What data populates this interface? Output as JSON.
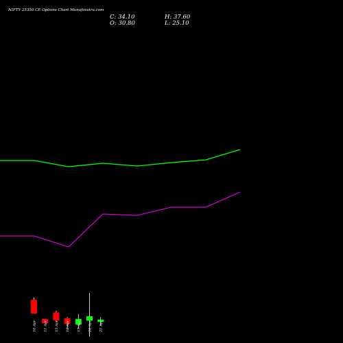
{
  "header": {
    "title": "NIFTY 25350 CE Options Chart Munafasutra.com",
    "close_label": "C: 34.10",
    "high_label": "H: 37.60",
    "open_label": "O: 30.80",
    "low_label": "L: 25.10"
  },
  "colors": {
    "background": "#000000",
    "upper_band": "#00ff00",
    "lower_band": "#cc00cc",
    "bull_candle": "#00ff00",
    "bear_candle": "#ff0000",
    "wick": "#ffffff",
    "text": "#ffffff"
  },
  "chart_data": {
    "type": "candlestick",
    "title": "NIFTY 25350 CE Options Chart Munafasutra.com",
    "categories": [
      "10 Apr",
      "11 Apr",
      "15 Apr",
      "16 Apr",
      "17 Apr",
      "20 Apr",
      "21 Apr"
    ],
    "candles": [
      {
        "date": "10 Apr",
        "open": 63,
        "high": 66,
        "low": 45,
        "close": 43,
        "direction": "down"
      },
      {
        "date": "11 Apr",
        "open": 35,
        "high": 35,
        "low": 29,
        "close": 29,
        "direction": "down"
      },
      {
        "date": "15 Apr",
        "open": 44.5,
        "high": 47,
        "low": 31,
        "close": 33,
        "direction": "down"
      },
      {
        "date": "16 Apr",
        "open": 36,
        "high": 38,
        "low": 21,
        "close": 28,
        "direction": "down"
      },
      {
        "date": "17 Apr",
        "open": 27,
        "high": 42,
        "low": 21,
        "close": 35,
        "direction": "up"
      },
      {
        "date": "20 Apr",
        "open": 32.5,
        "high": 73,
        "low": 9,
        "close": 39,
        "direction": "up"
      },
      {
        "date": "21 Apr",
        "open": 30.8,
        "high": 37.6,
        "low": 25.1,
        "close": 34.1,
        "direction": "up"
      }
    ],
    "overlay_series": [
      {
        "role": "upper-band",
        "color": "#00ff00",
        "x": [
          "10 Apr",
          "11 Apr",
          "15 Apr",
          "16 Apr",
          "17 Apr",
          "20 Apr",
          "21 Apr"
        ],
        "values": [
          266,
          257,
          262,
          258,
          263,
          267,
          282
        ]
      },
      {
        "role": "lower-band",
        "color": "#cc00cc",
        "x": [
          "10 Apr",
          "11 Apr",
          "15 Apr",
          "16 Apr",
          "17 Apr",
          "20 Apr",
          "21 Apr"
        ],
        "values": [
          156,
          140,
          188,
          186,
          198,
          198,
          220
        ]
      }
    ],
    "ylim": [
      0,
      500
    ],
    "grid": false,
    "legend": "none",
    "xlabel": "",
    "ylabel": ""
  }
}
